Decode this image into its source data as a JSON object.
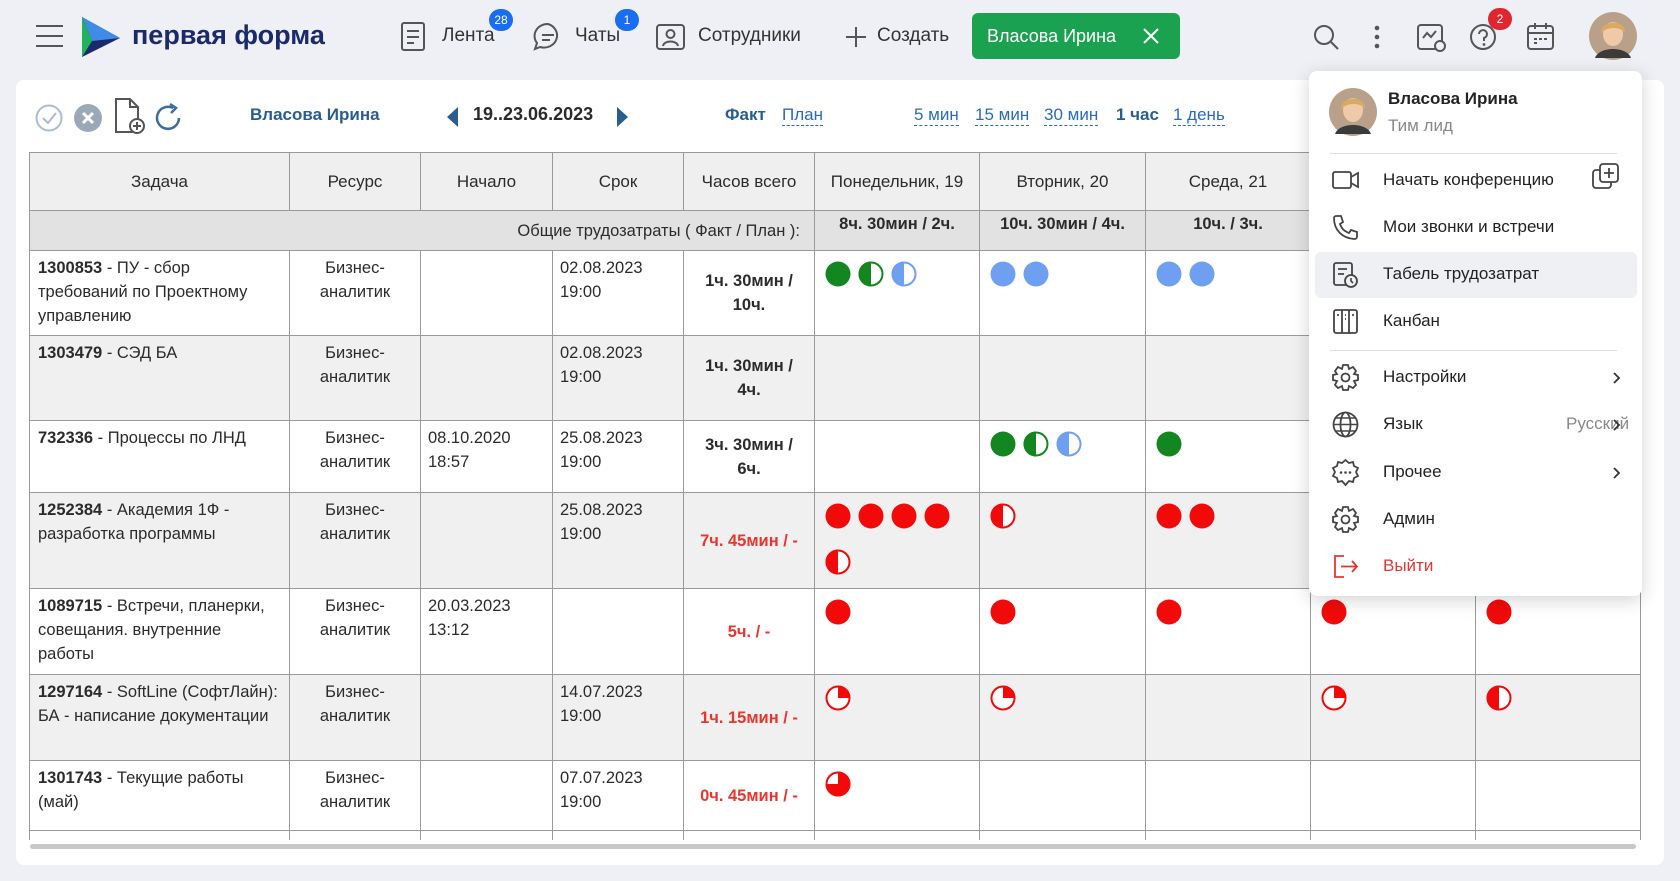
{
  "header": {
    "logo": "первая форма",
    "nav": [
      {
        "label": "Лента",
        "badge": "28"
      },
      {
        "label": "Чаты",
        "badge": "1"
      },
      {
        "label": "Сотрудники"
      },
      {
        "label": "Создать"
      }
    ],
    "active_tab": "Власова Ирина",
    "help_badge": "2"
  },
  "toolbar": {
    "user": "Власова Ирина",
    "period": "19..23.06.2023",
    "modes": [
      "Факт",
      "План"
    ],
    "scales": [
      "5 мин",
      "15 мин",
      "30 мин",
      "1 час",
      "1 день"
    ]
  },
  "table": {
    "columns": [
      "Задача",
      "Ресурс",
      "Начало",
      "Срок",
      "Часов всего",
      "Понедельник, 19",
      "Вторник, 20",
      "Среда, 21"
    ],
    "summary_label": "Общие трудозатраты ( Факт / План ):",
    "summary": [
      "8ч. 30мин / 2ч.",
      "10ч. 30мин / 4ч.",
      "10ч. / 3ч."
    ],
    "rows": [
      {
        "id": "1300853",
        "title": "- ПУ  - сбор требований по Проектному управлению",
        "resource": "Бизнес-аналитик",
        "deadline": "02.08.2023 19:00",
        "hours": "1ч. 30мин / 10ч."
      },
      {
        "id": "1303479",
        "title": "- СЭД БА",
        "resource": "Бизнес-аналитик",
        "deadline": "02.08.2023 19:00",
        "hours": "1ч. 30мин / 4ч."
      },
      {
        "id": "732336",
        "title": "- Процессы по ЛНД",
        "resource": "Бизнес-аналитик",
        "start": "08.10.2020 18:57",
        "deadline": "25.08.2023 19:00",
        "hours": "3ч. 30мин / 6ч."
      },
      {
        "id": "1252384",
        "title": "- Академия 1Ф - разработка программы",
        "resource": "Бизнес-аналитик",
        "deadline": "25.08.2023 19:00",
        "hours": "7ч. 45мин / -"
      },
      {
        "id": "1089715",
        "title": "- Встречи, планерки, совещания. внутренние работы",
        "resource": "Бизнес-аналитик",
        "start": "20.03.2023 13:12",
        "hours": "5ч. / -"
      },
      {
        "id": "1297164",
        "title": "- SoftLine (СофтЛайн): БА - написание документации",
        "resource": "Бизнес-аналитик",
        "deadline": "14.07.2023 19:00",
        "hours": "1ч. 15мин / -"
      },
      {
        "id": "1301743",
        "title": "- Текущие работы (май)",
        "resource": "Бизнес-аналитик",
        "deadline": "07.07.2023 19:00",
        "hours": "0ч. 45мин / -"
      }
    ]
  },
  "menu": {
    "name": "Власова Ирина",
    "role": "Тим лид",
    "items": [
      "Начать конференцию",
      "Мои звонки и встречи",
      "Табель трудозатрат",
      "Канбан",
      "Настройки",
      "Язык",
      "Прочее",
      "Админ",
      "Выйти"
    ],
    "language": "Русский"
  }
}
